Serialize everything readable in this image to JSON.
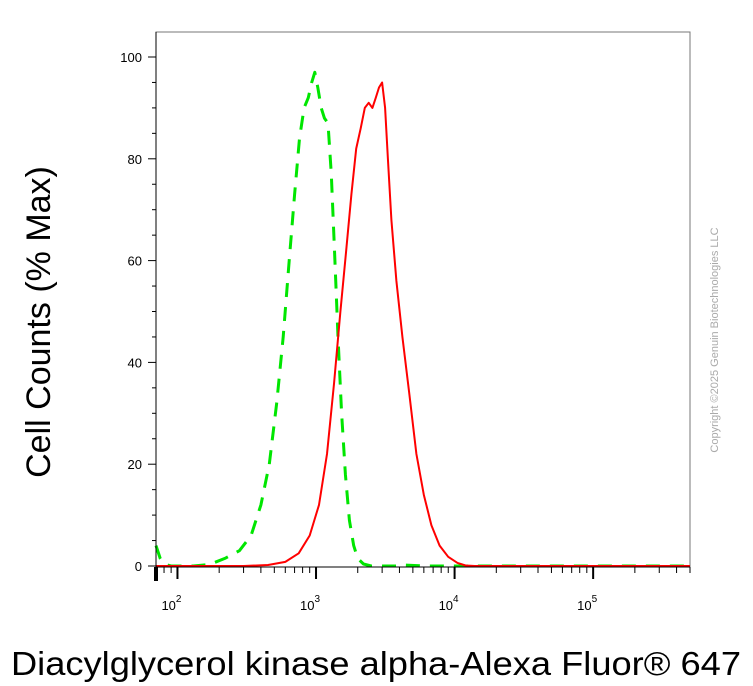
{
  "chart_data": {
    "type": "line",
    "title": "",
    "xlabel": "Diacylglycerol kinase alpha-Alexa Fluor® 647",
    "ylabel": "Cell Counts (% Max)",
    "x_scale": "log",
    "xlim": [
      70,
      500000
    ],
    "ylim": [
      0,
      105
    ],
    "x_ticks": [
      {
        "value": 100,
        "base": "10",
        "exp": "2"
      },
      {
        "value": 1000,
        "base": "10",
        "exp": "3"
      },
      {
        "value": 10000,
        "base": "10",
        "exp": "4"
      },
      {
        "value": 100000,
        "base": "10",
        "exp": "5"
      }
    ],
    "y_ticks": [
      {
        "value": 0,
        "label": "0"
      },
      {
        "value": 20,
        "label": "20"
      },
      {
        "value": 40,
        "label": "40"
      },
      {
        "value": 60,
        "label": "60"
      },
      {
        "value": 80,
        "label": "80"
      },
      {
        "value": 100,
        "label": "100"
      }
    ],
    "grid": false,
    "series": [
      {
        "color": "#00e600",
        "style": "dashed",
        "points": [
          [
            70,
            4
          ],
          [
            75,
            1.5
          ],
          [
            80,
            0.4
          ],
          [
            90,
            0
          ],
          [
            130,
            0
          ],
          [
            170,
            0.3
          ],
          [
            220,
            1.5
          ],
          [
            280,
            3
          ],
          [
            340,
            6
          ],
          [
            400,
            12
          ],
          [
            460,
            20
          ],
          [
            520,
            32
          ],
          [
            580,
            45
          ],
          [
            640,
            60
          ],
          [
            700,
            73
          ],
          [
            760,
            84
          ],
          [
            820,
            90
          ],
          [
            880,
            92
          ],
          [
            930,
            95
          ],
          [
            980,
            97
          ],
          [
            1030,
            94
          ],
          [
            1090,
            90
          ],
          [
            1150,
            88
          ],
          [
            1220,
            87
          ],
          [
            1290,
            77
          ],
          [
            1360,
            62
          ],
          [
            1440,
            45
          ],
          [
            1530,
            30
          ],
          [
            1630,
            18
          ],
          [
            1740,
            9
          ],
          [
            1870,
            4
          ],
          [
            2000,
            1.5
          ],
          [
            2200,
            0.4
          ],
          [
            2500,
            0
          ],
          [
            4000,
            0
          ],
          [
            4300,
            0.2
          ],
          [
            6000,
            0
          ],
          [
            9000,
            0
          ],
          [
            500000,
            0
          ]
        ]
      },
      {
        "color": "#ff0000",
        "style": "solid",
        "points": [
          [
            70,
            0
          ],
          [
            300,
            0
          ],
          [
            450,
            0.2
          ],
          [
            600,
            0.8
          ],
          [
            750,
            2.5
          ],
          [
            900,
            6
          ],
          [
            1050,
            12
          ],
          [
            1200,
            22
          ],
          [
            1350,
            36
          ],
          [
            1500,
            50
          ],
          [
            1650,
            62
          ],
          [
            1800,
            73
          ],
          [
            1950,
            82
          ],
          [
            2100,
            86
          ],
          [
            2250,
            90
          ],
          [
            2400,
            91
          ],
          [
            2550,
            90
          ],
          [
            2700,
            92
          ],
          [
            2850,
            94
          ],
          [
            3000,
            95
          ],
          [
            3150,
            90
          ],
          [
            3300,
            80
          ],
          [
            3500,
            68
          ],
          [
            3800,
            56
          ],
          [
            4200,
            45
          ],
          [
            4700,
            34
          ],
          [
            5300,
            22
          ],
          [
            6000,
            14
          ],
          [
            6800,
            8
          ],
          [
            7800,
            4
          ],
          [
            9000,
            1.8
          ],
          [
            10500,
            0.6
          ],
          [
            12000,
            0.1
          ],
          [
            14000,
            0
          ],
          [
            500000,
            0
          ]
        ]
      }
    ]
  },
  "watermark": "Copyright ©2025 Genuin Biotechnologies LLC"
}
